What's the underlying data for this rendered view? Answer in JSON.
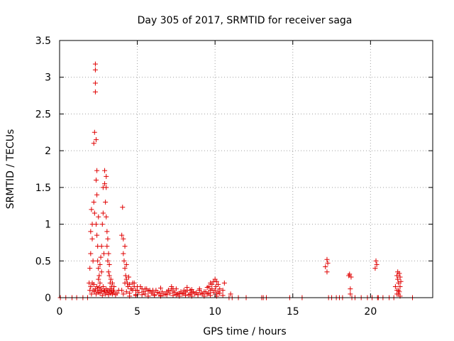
{
  "chart_data": {
    "type": "scatter",
    "title": "Day 305 of 2017, SRMTID for receiver saga",
    "xlabel": "GPS time / hours",
    "ylabel": "SRMTID / TECUs",
    "xlim": [
      0,
      24
    ],
    "ylim": [
      0,
      3.5
    ],
    "xticks": [
      0,
      5,
      10,
      15,
      20
    ],
    "xtick_labels": [
      "0",
      "5",
      "10",
      "15",
      "20"
    ],
    "yticks": [
      0,
      0.5,
      1,
      1.5,
      2,
      2.5,
      3,
      3.5
    ],
    "ytick_labels": [
      "0",
      "0.5",
      "1",
      "1.5",
      "2",
      "2.5",
      "3",
      "3.5"
    ],
    "grid": true,
    "marker": "plus",
    "color": "#e00000",
    "series": [
      {
        "name": "SRMTID",
        "x": [
          0.05,
          0.4,
          0.8,
          1.1,
          1.5,
          1.8,
          1.9,
          1.95,
          2.0,
          2.0,
          2.05,
          2.1,
          2.1,
          2.15,
          2.2,
          2.2,
          2.25,
          2.25,
          2.3,
          2.3,
          2.3,
          2.3,
          2.35,
          2.35,
          2.35,
          2.4,
          2.4,
          2.4,
          2.45,
          2.45,
          2.5,
          2.5,
          2.5,
          2.55,
          2.6,
          2.6,
          2.65,
          2.7,
          2.7,
          2.75,
          2.8,
          2.8,
          2.85,
          2.9,
          2.9,
          2.95,
          3.0,
          3.0,
          3.0,
          3.05,
          3.05,
          3.1,
          3.1,
          3.15,
          3.15,
          3.2,
          3.2,
          3.25,
          3.3,
          3.35,
          3.4,
          3.45,
          3.5,
          1.95,
          2.0,
          2.05,
          2.1,
          2.15,
          2.2,
          2.25,
          2.3,
          2.35,
          2.4,
          2.45,
          2.5,
          2.55,
          2.6,
          2.65,
          2.7,
          2.75,
          2.8,
          2.85,
          2.9,
          2.95,
          3.0,
          3.05,
          3.1,
          3.15,
          3.2,
          3.25,
          3.3,
          3.35,
          3.4,
          3.5,
          3.6,
          3.7,
          3.8,
          4.0,
          4.05,
          4.1,
          4.1,
          4.15,
          4.2,
          4.2,
          4.25,
          4.3,
          4.3,
          4.35,
          4.4,
          4.45,
          4.5,
          4.6,
          4.7,
          4.8,
          4.9,
          4.0,
          4.2,
          4.4,
          4.6,
          4.8,
          5.0,
          5.2,
          5.4,
          5.6,
          5.8,
          6.0,
          6.2,
          6.4,
          6.6,
          6.8,
          7.0,
          7.2,
          7.4,
          7.6,
          7.8,
          8.0,
          8.2,
          8.4,
          8.6,
          8.8,
          9.0,
          9.2,
          9.4,
          9.6,
          9.8,
          10.0,
          10.2,
          4.1,
          4.3,
          4.5,
          4.7,
          4.9,
          5.1,
          5.3,
          5.5,
          5.7,
          5.9,
          6.1,
          6.3,
          6.5,
          6.7,
          6.9,
          7.1,
          7.3,
          7.5,
          7.7,
          7.9,
          8.1,
          8.3,
          8.5,
          8.7,
          8.9,
          9.1,
          9.3,
          9.5,
          9.7,
          9.9,
          10.1,
          10.3,
          4.5,
          4.9,
          5.3,
          5.7,
          6.1,
          6.5,
          6.9,
          7.3,
          7.7,
          8.1,
          8.5,
          8.9,
          9.3,
          9.7,
          10.1,
          10.5,
          5.0,
          5.5,
          6.0,
          6.5,
          7.0,
          7.5,
          8.0,
          8.5,
          9.0,
          9.5,
          7.2,
          7.3,
          8.2,
          8.4,
          9.6,
          9.7,
          9.8,
          9.9,
          10.0,
          10.05,
          10.1,
          10.2,
          10.3,
          10.5,
          10.6,
          10.9,
          11.0,
          11.1,
          11.5,
          12.0,
          13.0,
          13.1,
          13.3,
          14.8,
          15.6,
          17.1,
          17.2,
          17.2,
          17.25,
          17.3,
          17.5,
          17.8,
          18.0,
          18.2,
          18.6,
          18.65,
          18.7,
          18.7,
          18.75,
          18.8,
          19.0,
          19.4,
          19.8,
          20.1,
          20.3,
          20.35,
          20.4,
          20.45,
          20.5,
          20.8,
          21.2,
          21.5,
          21.6,
          21.7,
          21.7,
          21.75,
          21.8,
          21.8,
          21.85,
          21.9,
          21.9,
          21.95,
          21.7,
          21.8,
          21.9,
          21.75,
          21.85,
          22.7
        ],
        "y": [
          0,
          0,
          0,
          0,
          0,
          0,
          0.2,
          0.4,
          0.6,
          0.9,
          1.2,
          1.0,
          0.8,
          0.5,
          1.3,
          2.1,
          2.25,
          1.15,
          3.18,
          2.92,
          3.1,
          2.8,
          2.15,
          1.6,
          1.0,
          1.73,
          1.4,
          0.85,
          0.7,
          0.5,
          1.1,
          0.4,
          0.25,
          0.3,
          0.45,
          0.2,
          0.55,
          0.7,
          0.35,
          1.0,
          1.5,
          1.15,
          0.6,
          1.73,
          1.55,
          1.3,
          1.65,
          1.5,
          1.1,
          0.9,
          0.7,
          0.8,
          0.5,
          0.6,
          0.35,
          0.45,
          0.3,
          0.2,
          0.25,
          0.15,
          0.2,
          0.1,
          0.15,
          0.1,
          0.15,
          0.05,
          0.2,
          0.1,
          0.18,
          0.08,
          0.12,
          0.05,
          0.15,
          0.1,
          0.07,
          0.14,
          0.06,
          0.12,
          0.09,
          0.03,
          0.15,
          0.08,
          0.1,
          0.05,
          0.12,
          0.07,
          0.1,
          0.04,
          0.08,
          0.12,
          0.06,
          0.1,
          0.05,
          0.08,
          0.04,
          0.06,
          0.1,
          0.85,
          1.23,
          0.6,
          0.8,
          0.5,
          0.4,
          0.7,
          0.3,
          0.25,
          0.45,
          0.2,
          0.15,
          0.28,
          0.18,
          0.12,
          0.2,
          0.15,
          0.1,
          0.1,
          0.2,
          0.15,
          0.12,
          0.2,
          0.1,
          0.15,
          0.08,
          0.12,
          0.1,
          0.08,
          0.1,
          0.06,
          0.08,
          0.05,
          0.1,
          0.12,
          0.07,
          0.05,
          0.08,
          0.06,
          0.1,
          0.05,
          0.08,
          0.07,
          0.1,
          0.05,
          0.08,
          0.06,
          0.12,
          0.1,
          0.08,
          0.05,
          0.08,
          0.06,
          0.1,
          0.04,
          0.07,
          0.12,
          0.05,
          0.09,
          0.06,
          0.04,
          0.07,
          0.03,
          0.05,
          0.08,
          0.06,
          0.09,
          0.04,
          0.06,
          0.05,
          0.08,
          0.04,
          0.07,
          0.05,
          0.04,
          0.06,
          0.08,
          0.05,
          0.1,
          0.07,
          0.05,
          0.06,
          0.02,
          0.03,
          0.04,
          0.02,
          0.03,
          0.02,
          0.04,
          0.03,
          0.02,
          0.03,
          0.02,
          0.04,
          0.02,
          0.03,
          0.02,
          0.03,
          0.15,
          0.12,
          0.1,
          0.13,
          0.1,
          0.12,
          0.1,
          0.11,
          0.12,
          0.14,
          0.15,
          0.12,
          0.14,
          0.1,
          0.15,
          0.2,
          0.18,
          0.22,
          0.25,
          0.15,
          0.22,
          0.18,
          0.12,
          0.1,
          0.2,
          0,
          0.05,
          0,
          0,
          0,
          0,
          0,
          0,
          0,
          0,
          0.42,
          0.52,
          0.35,
          0.47,
          0,
          0,
          0,
          0,
          0,
          0.3,
          0.32,
          0.12,
          0.05,
          0.28,
          0,
          0,
          0,
          0,
          0,
          0.4,
          0.5,
          0.45,
          0,
          0,
          0,
          0,
          0,
          0.15,
          0.3,
          0.1,
          0.25,
          0.2,
          0.05,
          0.33,
          0.28,
          0.15,
          0.22,
          0.05,
          0.1,
          0.02,
          0.35,
          0.08,
          0
        ]
      }
    ]
  }
}
